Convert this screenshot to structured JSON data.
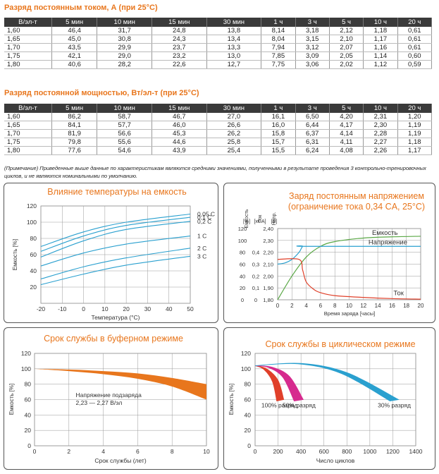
{
  "table1": {
    "title": "Разряд постоянным током, А (при 25°C)",
    "headers": [
      "В/эл-т",
      "5 мин",
      "10 мин",
      "15 мин",
      "30 мин",
      "1 ч",
      "3 ч",
      "5 ч",
      "10 ч",
      "20 ч"
    ],
    "rows": [
      [
        "1,60",
        "46,4",
        "31,7",
        "24,8",
        "13,8",
        "8,14",
        "3,18",
        "2,12",
        "1,18",
        "0,61"
      ],
      [
        "1,65",
        "45,0",
        "30,8",
        "24,3",
        "13,4",
        "8,04",
        "3,15",
        "2,10",
        "1,17",
        "0,61"
      ],
      [
        "1,70",
        "43,5",
        "29,9",
        "23,7",
        "13,3",
        "7,94",
        "3,12",
        "2,07",
        "1,16",
        "0,61"
      ],
      [
        "1,75",
        "42,1",
        "29,0",
        "23,2",
        "13,0",
        "7,85",
        "3,09",
        "2,05",
        "1,14",
        "0,60"
      ],
      [
        "1,80",
        "40,6",
        "28,2",
        "22,6",
        "12,7",
        "7,75",
        "3,06",
        "2,02",
        "1,12",
        "0,59"
      ]
    ]
  },
  "table2": {
    "title": "Разряд постоянной мощностью, Вт/эл-т (при 25°C)",
    "headers": [
      "В/эл-т",
      "5 мин",
      "10 мин",
      "15 мин",
      "30 мин",
      "1 ч",
      "3 ч",
      "5 ч",
      "10 ч",
      "20 ч"
    ],
    "rows": [
      [
        "1,60",
        "86,2",
        "58,7",
        "46,7",
        "27,0",
        "16,1",
        "6,50",
        "4,20",
        "2,31",
        "1,20"
      ],
      [
        "1,65",
        "84,1",
        "57,7",
        "46,0",
        "26,6",
        "16,0",
        "6,44",
        "4,17",
        "2,30",
        "1,19"
      ],
      [
        "1,70",
        "81,9",
        "56,6",
        "45,3",
        "26,2",
        "15,8",
        "6,37",
        "4,14",
        "2,28",
        "1,19"
      ],
      [
        "1,75",
        "79,8",
        "55,6",
        "44,6",
        "25,8",
        "15,7",
        "6,31",
        "4,11",
        "2,27",
        "1,18"
      ],
      [
        "1,80",
        "77,6",
        "54,6",
        "43,9",
        "25,4",
        "15,5",
        "6,24",
        "4,08",
        "2,26",
        "1,17"
      ]
    ]
  },
  "note": "(Примечание) Приведенные выше данные по характеристикам являются средними значениями, полученными в результате проведения 3 контрольно-тренировочных циклов, и не являются номинальными по умолчанию.",
  "colors": {
    "orange": "#e8761d",
    "blue": "#2aa0cf",
    "green": "#5aa846",
    "red": "#e0402a",
    "magenta": "#d62b8e",
    "header": "#3a3a3a"
  },
  "chart_data": [
    {
      "type": "line",
      "title": "Влияние температуры на емкость",
      "xlabel": "Температура (°C)",
      "ylabel": "Емкость [%]",
      "xlim": [
        -20,
        50
      ],
      "ylim": [
        0,
        120
      ],
      "xticks": [
        "-20",
        "-10",
        "0",
        "10",
        "20",
        "30",
        "40",
        "50"
      ],
      "yticks": [
        "20",
        "40",
        "60",
        "80",
        "100",
        "120"
      ],
      "grid": true,
      "series": [
        {
          "name": "0,05 C",
          "x": [
            -20,
            0,
            20,
            50
          ],
          "y": [
            70,
            88,
            100,
            110
          ]
        },
        {
          "name": "0,1 C",
          "x": [
            -20,
            0,
            20,
            50
          ],
          "y": [
            64,
            83,
            96,
            106
          ]
        },
        {
          "name": "0,2 C",
          "x": [
            -20,
            0,
            20,
            50
          ],
          "y": [
            57,
            77,
            91,
            101
          ]
        },
        {
          "name": "1 C",
          "x": [
            -20,
            0,
            20,
            50
          ],
          "y": [
            46,
            62,
            73,
            83
          ]
        },
        {
          "name": "2 C",
          "x": [
            -20,
            0,
            20,
            50
          ],
          "y": [
            30,
            45,
            56,
            68
          ]
        },
        {
          "name": "3 C",
          "x": [
            -20,
            0,
            20,
            50
          ],
          "y": [
            23,
            36,
            47,
            58
          ]
        }
      ]
    },
    {
      "type": "line",
      "title": [
        "Заряд постоянным напряжением",
        "(ограничение тока 0,34 CA, 25°C)"
      ],
      "xlabel": "Время заряда [часы]",
      "xlim": [
        0,
        20
      ],
      "xticks": [
        "0",
        "2",
        "4",
        "6",
        "8",
        "10",
        "12",
        "14",
        "16",
        "18",
        "20"
      ],
      "axis_headers": [
        [
          "Емкость",
          "[%]"
        ],
        [
          "Ток",
          "[xCA]"
        ],
        [
          "Напр.",
          "[B]"
        ]
      ],
      "left_ticks": [
        "120",
        "100",
        "80",
        "60",
        "40",
        "20",
        "0"
      ],
      "mid_ticks": [
        "0,4",
        "0,3",
        "0,2",
        "0,1",
        "0"
      ],
      "volt_ticks": [
        "2,40",
        "2,30",
        "2,20",
        "2,10",
        "2,00",
        "1,90",
        "1,80"
      ],
      "capacity_ylim": [
        0,
        120
      ],
      "voltage_ylim": [
        1.8,
        2.4
      ],
      "grid": true,
      "series": [
        {
          "name": "Емкость",
          "x": [
            0,
            2,
            4,
            6,
            8,
            12,
            16,
            20
          ],
          "y": [
            0,
            40,
            72,
            90,
            98,
            104,
            106,
            107
          ]
        },
        {
          "name": "Напряжение",
          "x": [
            0,
            1,
            2,
            3,
            3.5,
            4,
            20
          ],
          "y": [
            2.1,
            2.11,
            2.14,
            2.2,
            2.25,
            2.25,
            2.25
          ]
        },
        {
          "name": "Ток",
          "x": [
            0,
            3,
            3.5,
            4,
            5,
            6,
            8,
            12,
            16,
            20
          ],
          "y": [
            0.34,
            0.34,
            0.25,
            0.15,
            0.09,
            0.06,
            0.035,
            0.02,
            0.01,
            0.005
          ]
        }
      ]
    },
    {
      "type": "area",
      "title": "Срок службы в буферном режиме",
      "xlabel": "Срок службы (лет)",
      "ylabel": "Емкость [%]",
      "xlim": [
        0,
        10
      ],
      "ylim": [
        0,
        120
      ],
      "xticks": [
        "0",
        "2",
        "4",
        "6",
        "8",
        "10"
      ],
      "yticks": [
        "0",
        "20",
        "40",
        "60",
        "80",
        "100",
        "120"
      ],
      "annotation": [
        "Напряжение подзаряда",
        "2,23 — 2,27 В/эл"
      ],
      "band_upper": {
        "x": [
          0,
          2,
          4,
          6,
          8,
          10
        ],
        "y": [
          100,
          99,
          97,
          94,
          88,
          80
        ]
      },
      "band_lower": {
        "x": [
          0,
          2,
          4,
          6,
          8,
          10
        ],
        "y": [
          100,
          97,
          93,
          87,
          77,
          60
        ]
      }
    },
    {
      "type": "area",
      "title": "Срок службы в циклическом режиме",
      "xlabel": "Число циклов",
      "ylabel": "Емкость [%]",
      "xlim": [
        0,
        1400
      ],
      "ylim": [
        0,
        120
      ],
      "xticks": [
        "0",
        "200",
        "400",
        "600",
        "800",
        "1000",
        "1200",
        "1400"
      ],
      "yticks": [
        "0",
        "20",
        "40",
        "60",
        "80",
        "100",
        "120"
      ],
      "series": [
        {
          "name": "100% разряд",
          "x": [
            0,
            100,
            200,
            250
          ],
          "y": [
            104,
            100,
            85,
            60
          ]
        },
        {
          "name": "50% разряд",
          "x": [
            0,
            150,
            300,
            420
          ],
          "y": [
            104,
            102,
            90,
            60
          ]
        },
        {
          "name": "30% разряд",
          "x": [
            0,
            400,
            800,
            1250
          ],
          "y": [
            104,
            107,
            95,
            60
          ]
        }
      ]
    }
  ]
}
